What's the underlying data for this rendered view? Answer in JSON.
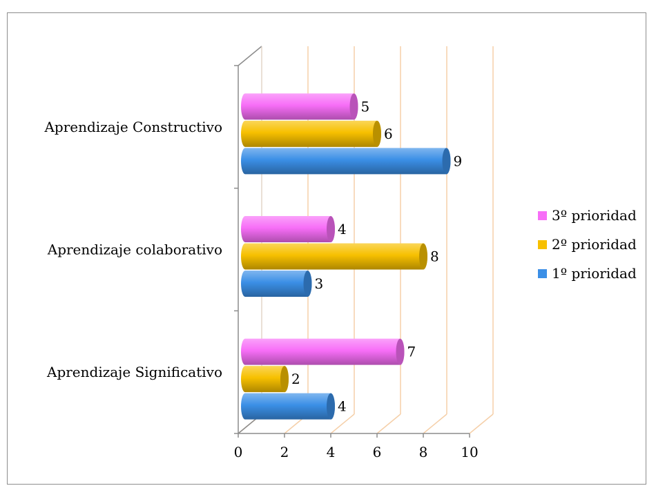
{
  "chart_data": {
    "type": "bar",
    "orientation": "horizontal",
    "style": "3d-cylinder",
    "categories": [
      "Aprendizaje Significativo",
      "Aprendizaje colaborativo",
      "Aprendizaje Constructivo"
    ],
    "series": [
      {
        "name": "1º prioridad",
        "values": [
          4,
          3,
          9
        ],
        "color": "#3b8fe6"
      },
      {
        "name": "2º prioridad",
        "values": [
          2,
          8,
          6
        ],
        "color": "#f7c000"
      },
      {
        "name": "3º prioridad",
        "values": [
          7,
          4,
          5
        ],
        "color": "#f76ef7"
      }
    ],
    "xlim": [
      0,
      10
    ],
    "x_ticks": [
      "0",
      "2",
      "4",
      "6",
      "8",
      "10"
    ],
    "legend_position": "right",
    "grid": true,
    "grid_color": "#f5cfa8"
  }
}
